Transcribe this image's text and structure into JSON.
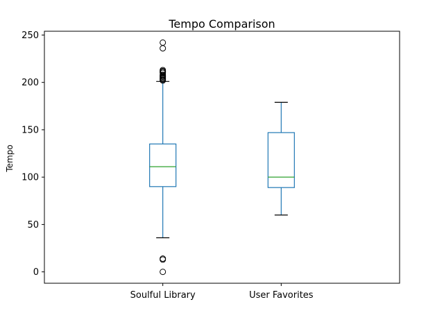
{
  "chart_data": {
    "type": "box",
    "title": "Tempo Comparison",
    "xlabel": "",
    "ylabel": "Tempo",
    "categories": [
      "Soulful Library",
      "User Favorites"
    ],
    "ylim": [
      -12,
      254
    ],
    "yticks": [
      0,
      50,
      100,
      150,
      200,
      250
    ],
    "grid": false,
    "colors": {
      "box": "#1f77b4",
      "median": "#2ca02c",
      "whisker_cap": "#000000",
      "flier": "#000000"
    },
    "series": [
      {
        "category": "Soulful Library",
        "q1": 90,
        "median": 111,
        "q3": 135,
        "whisker_low": 36,
        "whisker_high": 201,
        "fliers": [
          0,
          13,
          14,
          202,
          203,
          204,
          205,
          206,
          207,
          208,
          210,
          211,
          212,
          213,
          236,
          242
        ]
      },
      {
        "category": "User Favorites",
        "q1": 89,
        "median": 100,
        "q3": 147,
        "whisker_low": 60,
        "whisker_high": 179,
        "fliers": []
      }
    ]
  }
}
